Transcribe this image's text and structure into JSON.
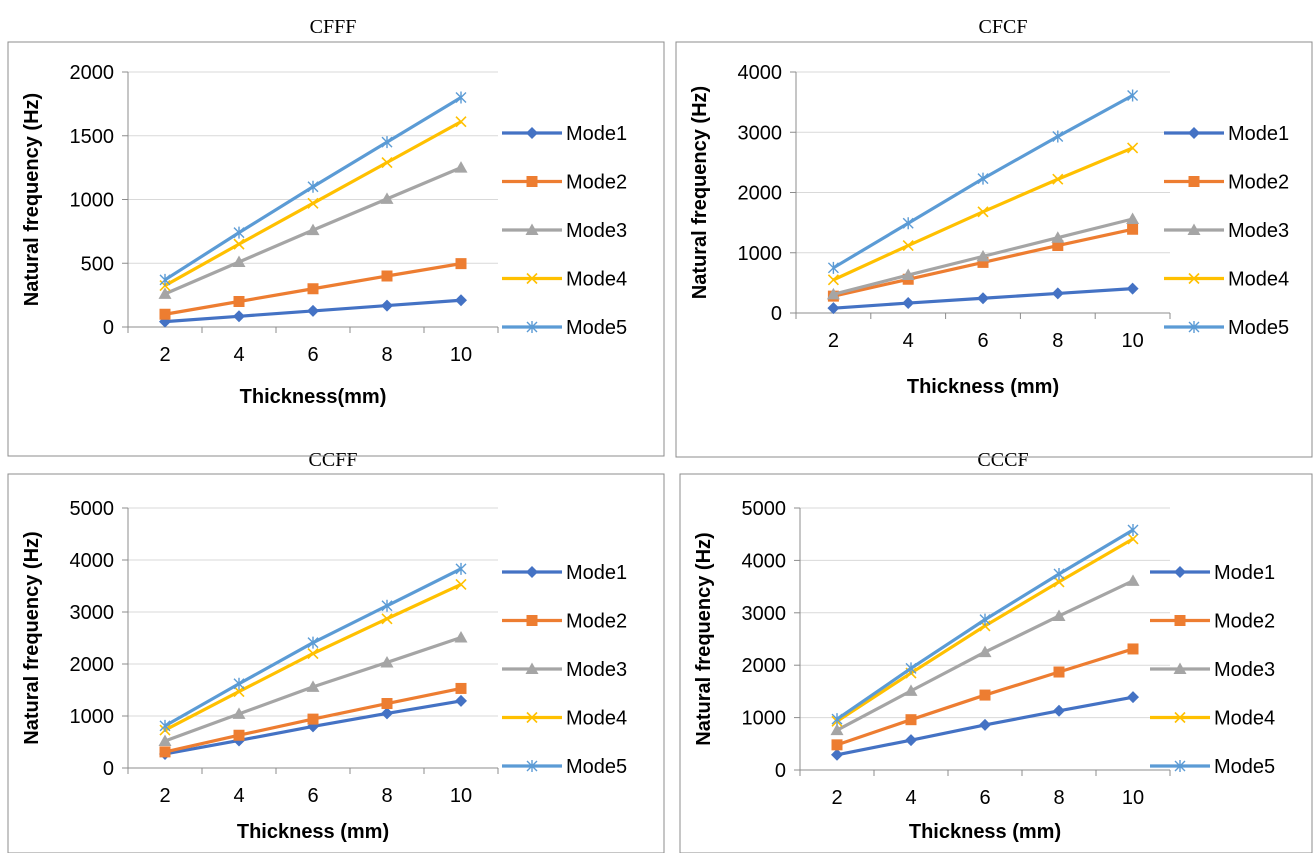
{
  "series_colors": [
    "#4472C4",
    "#ED7D31",
    "#A5A5A5",
    "#FFC000",
    "#5B9BD5"
  ],
  "markers": [
    "diamond",
    "square",
    "triangle",
    "x",
    "star"
  ],
  "chart_data": [
    {
      "type": "line",
      "title": "CFFF",
      "xlabel": "Thickness(mm)",
      "ylabel": "Natural frequency (Hz)",
      "x": [
        2,
        4,
        6,
        8,
        10
      ],
      "ylim": [
        0,
        2000
      ],
      "yticks": [
        0,
        500,
        1000,
        1500,
        2000
      ],
      "grid": true,
      "legend": "right",
      "series": [
        {
          "name": "Mode1",
          "values": [
            42,
            84,
            126,
            168,
            210
          ]
        },
        {
          "name": "Mode2",
          "values": [
            100,
            200,
            300,
            400,
            497
          ]
        },
        {
          "name": "Mode3",
          "values": [
            260,
            510,
            760,
            1005,
            1250
          ]
        },
        {
          "name": "Mode4",
          "values": [
            325,
            650,
            970,
            1290,
            1610
          ]
        },
        {
          "name": "Mode5",
          "values": [
            370,
            740,
            1100,
            1450,
            1800
          ]
        }
      ]
    },
    {
      "type": "line",
      "title": "CFCF",
      "xlabel": "Thickness (mm)",
      "ylabel": "Natural frequency (Hz)",
      "x": [
        2,
        4,
        6,
        8,
        10
      ],
      "ylim": [
        0,
        4000
      ],
      "yticks": [
        0,
        1000,
        2000,
        3000,
        4000
      ],
      "grid": true,
      "legend": "right",
      "series": [
        {
          "name": "Mode1",
          "values": [
            80,
            165,
            245,
            325,
            405
          ]
        },
        {
          "name": "Mode2",
          "values": [
            280,
            560,
            840,
            1120,
            1390
          ]
        },
        {
          "name": "Mode3",
          "values": [
            310,
            630,
            940,
            1250,
            1560
          ]
        },
        {
          "name": "Mode4",
          "values": [
            550,
            1120,
            1680,
            2220,
            2740
          ]
        },
        {
          "name": "Mode5",
          "values": [
            750,
            1490,
            2230,
            2930,
            3610
          ]
        }
      ]
    },
    {
      "type": "line",
      "title": "CCFF",
      "xlabel": "Thickness (mm)",
      "ylabel": "Natural frequency (Hz)",
      "x": [
        2,
        4,
        6,
        8,
        10
      ],
      "ylim": [
        0,
        5000
      ],
      "yticks": [
        0,
        1000,
        2000,
        3000,
        4000,
        5000
      ],
      "grid": true,
      "legend": "right",
      "series": [
        {
          "name": "Mode1",
          "values": [
            270,
            530,
            800,
            1050,
            1290
          ]
        },
        {
          "name": "Mode2",
          "values": [
            310,
            630,
            940,
            1240,
            1530
          ]
        },
        {
          "name": "Mode3",
          "values": [
            520,
            1040,
            1560,
            2030,
            2510
          ]
        },
        {
          "name": "Mode4",
          "values": [
            730,
            1470,
            2200,
            2870,
            3530
          ]
        },
        {
          "name": "Mode5",
          "values": [
            810,
            1620,
            2410,
            3120,
            3830
          ]
        }
      ]
    },
    {
      "type": "line",
      "title": "CCCF",
      "xlabel": "Thickness (mm)",
      "ylabel": "Natural frequency (Hz)",
      "x": [
        2,
        4,
        6,
        8,
        10
      ],
      "ylim": [
        0,
        5000
      ],
      "yticks": [
        0,
        1000,
        2000,
        3000,
        4000,
        5000
      ],
      "grid": true,
      "legend": "right",
      "series": [
        {
          "name": "Mode1",
          "values": [
            290,
            570,
            860,
            1130,
            1390
          ]
        },
        {
          "name": "Mode2",
          "values": [
            480,
            960,
            1430,
            1870,
            2310
          ]
        },
        {
          "name": "Mode3",
          "values": [
            760,
            1510,
            2250,
            2940,
            3610
          ]
        },
        {
          "name": "Mode4",
          "values": [
            930,
            1850,
            2750,
            3590,
            4410
          ]
        },
        {
          "name": "Mode5",
          "values": [
            970,
            1940,
            2870,
            3740,
            4580
          ]
        }
      ]
    }
  ]
}
